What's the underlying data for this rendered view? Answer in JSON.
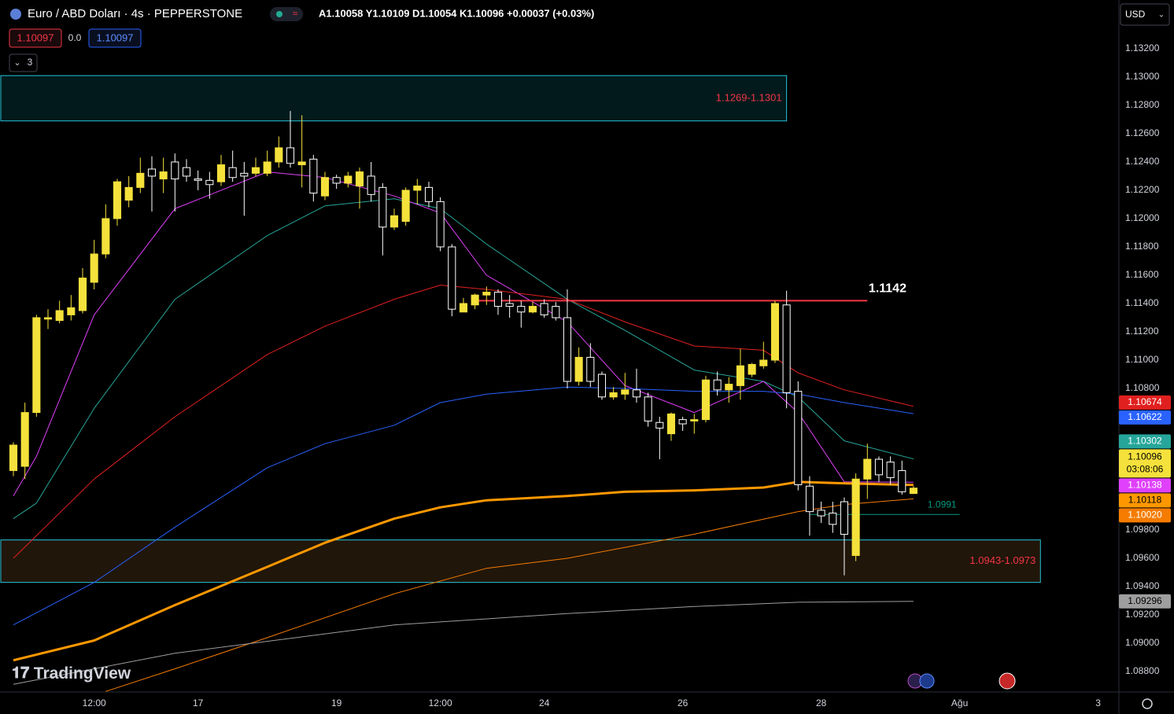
{
  "toolbar": {
    "sell_price": "1.10097",
    "spread": "0.0",
    "buy_price": "1.10097",
    "indicator_count": "3",
    "logo": "TradingView"
  },
  "chart_data": {
    "type": "candlestick",
    "title": "Euro / ABD Doları · 4s · PEPPERSTONE",
    "ohlc_text": "A1.10058 Y1.10109 D1.10054 K1.10096 +0.00037 (+0.03%)",
    "currency": "USD",
    "timer": "03:08:06",
    "up_color": "#f5e13b",
    "down_color": "#ffffff",
    "candles": {
      "open": [
        1.1022,
        1.1025,
        1.1063,
        1.1129,
        1.1128,
        1.1132,
        1.1135,
        1.1155,
        1.1175,
        1.12,
        1.1213,
        1.1222,
        1.1235,
        1.1228,
        1.124,
        1.1236,
        1.1228,
        1.1227,
        1.1226,
        1.1236,
        1.1232,
        1.1232,
        1.1232,
        1.124,
        1.125,
        1.1238,
        1.1242,
        1.1216,
        1.1229,
        1.1225,
        1.1223,
        1.123,
        1.1222,
        1.1194,
        1.1198,
        1.122,
        1.1222,
        1.1212,
        1.118,
        1.1134,
        1.1139,
        1.1146,
        1.1148,
        1.114,
        1.1138,
        1.1134,
        1.114,
        1.1138,
        1.113,
        1.1085,
        1.1102,
        1.109,
        1.1074,
        1.1076,
        1.1079,
        1.1074,
        1.1056,
        1.1048,
        1.1058,
        1.1057,
        1.1058,
        1.1086,
        1.1079,
        1.1082,
        1.109,
        1.1096,
        1.11,
        1.1139,
        1.1078,
        1.1011,
        1.0994,
        1.0992,
        1.1,
        1.0962,
        1.1016,
        1.103,
        1.1028,
        1.1022,
        1.10058
      ],
      "high": [
        1.1042,
        1.107,
        1.1132,
        1.1136,
        1.1142,
        1.1146,
        1.1165,
        1.1185,
        1.121,
        1.1228,
        1.123,
        1.1243,
        1.1244,
        1.1243,
        1.1246,
        1.1242,
        1.1234,
        1.1233,
        1.1245,
        1.1248,
        1.124,
        1.1243,
        1.1248,
        1.1258,
        1.1276,
        1.1273,
        1.1245,
        1.1233,
        1.1231,
        1.1233,
        1.1236,
        1.124,
        1.1225,
        1.1207,
        1.1222,
        1.1228,
        1.1226,
        1.1215,
        1.1182,
        1.1144,
        1.1147,
        1.1152,
        1.115,
        1.1146,
        1.1142,
        1.1141,
        1.1143,
        1.1141,
        1.115,
        1.1109,
        1.1112,
        1.1092,
        1.1081,
        1.1091,
        1.1094,
        1.1077,
        1.106,
        1.1063,
        1.106,
        1.1062,
        1.1089,
        1.1092,
        1.1088,
        1.1108,
        1.1098,
        1.1113,
        1.1142,
        1.1149,
        1.1085,
        1.1018,
        1.1,
        1.1,
        1.1003,
        1.102,
        1.1041,
        1.1032,
        1.1032,
        1.1029,
        1.10109
      ],
      "low": [
        1.1018,
        1.1016,
        1.106,
        1.1122,
        1.1126,
        1.1128,
        1.1133,
        1.115,
        1.1172,
        1.1195,
        1.1208,
        1.1218,
        1.1205,
        1.1218,
        1.1205,
        1.1226,
        1.122,
        1.1214,
        1.1223,
        1.1226,
        1.1202,
        1.123,
        1.123,
        1.1236,
        1.1236,
        1.1222,
        1.1212,
        1.1213,
        1.1221,
        1.1222,
        1.1207,
        1.1212,
        1.1174,
        1.1192,
        1.1195,
        1.121,
        1.1208,
        1.1177,
        1.1131,
        1.1134,
        1.1136,
        1.1139,
        1.1132,
        1.113,
        1.1123,
        1.1133,
        1.113,
        1.1128,
        1.108,
        1.1082,
        1.1081,
        1.1072,
        1.1072,
        1.1072,
        1.107,
        1.1053,
        1.103,
        1.1043,
        1.105,
        1.1048,
        1.1056,
        1.1075,
        1.107,
        1.1072,
        1.1088,
        1.1094,
        1.1098,
        1.1066,
        1.1008,
        1.0976,
        1.0985,
        1.0978,
        1.0948,
        1.0958,
        1.1002,
        1.1014,
        1.1012,
        1.1005,
        1.10054
      ],
      "close": [
        1.104,
        1.1063,
        1.113,
        1.113,
        1.1135,
        1.1137,
        1.1158,
        1.1175,
        1.12,
        1.1226,
        1.1222,
        1.1232,
        1.123,
        1.1233,
        1.1228,
        1.123,
        1.1227,
        1.1224,
        1.1238,
        1.1229,
        1.123,
        1.1236,
        1.124,
        1.125,
        1.1239,
        1.124,
        1.1218,
        1.1229,
        1.1225,
        1.123,
        1.1233,
        1.1217,
        1.1194,
        1.1202,
        1.122,
        1.1223,
        1.1212,
        1.118,
        1.1136,
        1.114,
        1.1146,
        1.1148,
        1.1138,
        1.1138,
        1.1134,
        1.1138,
        1.1132,
        1.113,
        1.1085,
        1.1102,
        1.1085,
        1.1074,
        1.1077,
        1.1079,
        1.1074,
        1.1057,
        1.1052,
        1.1062,
        1.1055,
        1.1058,
        1.1086,
        1.1079,
        1.1083,
        1.1096,
        1.1097,
        1.11,
        1.114,
        1.1077,
        1.1012,
        1.0993,
        1.099,
        1.0984,
        1.0977,
        1.1016,
        1.103,
        1.1019,
        1.1017,
        1.1007,
        1.10096
      ]
    },
    "lines": [
      {
        "color": "#26a69a",
        "width": 1,
        "last_label": "1.10302",
        "x": [
          0,
          2,
          7,
          14,
          22,
          27,
          33,
          37,
          41,
          48,
          53,
          59,
          65,
          68,
          72,
          78
        ],
        "values": [
          1.0988,
          1.0999,
          1.1066,
          1.1143,
          1.1188,
          1.1209,
          1.1214,
          1.1207,
          1.1182,
          1.1143,
          1.1121,
          1.1093,
          1.1085,
          1.1074,
          1.1043,
          1.10302
        ]
      },
      {
        "color": "#e040fb",
        "width": 1,
        "last_label": "1.10138",
        "x": [
          0,
          2,
          7,
          14,
          22,
          27,
          33,
          37,
          41,
          48,
          53,
          59,
          65,
          68,
          72,
          78
        ],
        "values": [
          1.1004,
          1.1032,
          1.1132,
          1.1207,
          1.1233,
          1.1229,
          1.1216,
          1.1204,
          1.116,
          1.1127,
          1.1082,
          1.1063,
          1.1085,
          1.1063,
          1.1014,
          1.10138
        ]
      },
      {
        "color": "#e0201f",
        "width": 1,
        "last_label": "1.10674",
        "x": [
          0,
          7,
          14,
          22,
          27,
          33,
          37,
          41,
          48,
          53,
          59,
          65,
          68,
          72,
          78
        ],
        "values": [
          1.096,
          1.1016,
          1.106,
          1.1104,
          1.1124,
          1.1143,
          1.1153,
          1.115,
          1.1143,
          1.1127,
          1.111,
          1.1107,
          1.1091,
          1.1079,
          1.10674
        ]
      },
      {
        "color": "#2962ff",
        "width": 1,
        "last_label": "1.10622",
        "x": [
          0,
          7,
          14,
          22,
          27,
          33,
          37,
          41,
          48,
          53,
          59,
          65,
          68,
          72,
          78
        ],
        "values": [
          1.0913,
          1.0943,
          1.0982,
          1.1024,
          1.1041,
          1.1054,
          1.107,
          1.1076,
          1.1081,
          1.108,
          1.1078,
          1.1078,
          1.1076,
          1.107,
          1.10622
        ]
      },
      {
        "color": "#ff9800",
        "width": 3,
        "last_label": "1.10118",
        "x": [
          0,
          7,
          14,
          22,
          27,
          33,
          37,
          41,
          48,
          53,
          59,
          65,
          68,
          72,
          78
        ],
        "values": [
          1.0888,
          1.0902,
          1.0927,
          1.0954,
          1.0971,
          1.0988,
          1.0996,
          1.1001,
          1.1004,
          1.1007,
          1.1008,
          1.101,
          1.1014,
          1.1013,
          1.10118
        ]
      },
      {
        "color": "#f57c00",
        "width": 1,
        "last_label": "1.10020",
        "x": [
          8,
          14,
          22,
          33,
          41,
          48,
          59,
          68,
          72,
          78
        ],
        "values": [
          1.0866,
          1.0882,
          1.0904,
          1.0935,
          1.0953,
          1.096,
          1.0977,
          1.0993,
          1.0998,
          1.1002
        ]
      },
      {
        "color": "#9e9e9e",
        "width": 1,
        "last_label": "1.09296",
        "x": [
          0,
          14,
          33,
          48,
          59,
          68,
          78
        ],
        "values": [
          1.0871,
          1.0893,
          1.0913,
          1.0921,
          1.0926,
          1.0929,
          1.09296
        ]
      }
    ],
    "levels": [
      {
        "value": 1.1142,
        "color": "#f23645",
        "from": 40,
        "to": 74
      },
      {
        "value": 1.0991,
        "color": "#089981",
        "from": 69,
        "to": 82
      }
    ],
    "zones": [
      {
        "label": "1.1269-1.1301",
        "low": 1.1269,
        "high": 1.1301,
        "to": 67,
        "fill": "#021a1c",
        "stroke": "#26c6da"
      },
      {
        "label": "1.0943-1.0973",
        "low": 1.0943,
        "high": 1.0973,
        "to": 89,
        "fill": "#21160a",
        "stroke": "#26c6da"
      }
    ],
    "xlim": [
      -1.16,
      95.8
    ],
    "xticks": [
      {
        "value": 7,
        "label": "12:00"
      },
      {
        "value": 16,
        "label": "17"
      },
      {
        "value": 28,
        "label": "19"
      },
      {
        "value": 37,
        "label": "12:00"
      },
      {
        "value": 46,
        "label": "24"
      },
      {
        "value": 58,
        "label": "26"
      },
      {
        "value": 70,
        "label": "28"
      },
      {
        "value": 82,
        "label": "Ağu"
      },
      {
        "value": 94,
        "label": "3"
      }
    ],
    "ylim": [
      1.08656,
      1.13544
    ],
    "yticks": [
      {
        "value": 1.132,
        "label": "1.13200"
      },
      {
        "value": 1.13,
        "label": "1.13000"
      },
      {
        "value": 1.128,
        "label": "1.12800"
      },
      {
        "value": 1.126,
        "label": "1.12600"
      },
      {
        "value": 1.124,
        "label": "1.12400"
      },
      {
        "value": 1.122,
        "label": "1.12200"
      },
      {
        "value": 1.12,
        "label": "1.12000"
      },
      {
        "value": 1.118,
        "label": "1.11800"
      },
      {
        "value": 1.116,
        "label": "1.11600"
      },
      {
        "value": 1.114,
        "label": "1.11400"
      },
      {
        "value": 1.112,
        "label": "1.11200"
      },
      {
        "value": 1.11,
        "label": "1.11000"
      },
      {
        "value": 1.108,
        "label": "1.10800"
      },
      {
        "value": 1.106,
        "label": "1.10600"
      },
      {
        "value": 1.104,
        "label": "1.10400"
      },
      {
        "value": 1.102,
        "label": "1.10200"
      },
      {
        "value": 1.1,
        "label": "1.10000"
      },
      {
        "value": 1.098,
        "label": "1.09800"
      },
      {
        "value": 1.096,
        "label": "1.09600"
      },
      {
        "value": 1.094,
        "label": "1.09400"
      },
      {
        "value": 1.092,
        "label": "1.09200"
      },
      {
        "value": 1.09,
        "label": "1.09000"
      },
      {
        "value": 1.088,
        "label": "1.08800"
      }
    ]
  }
}
